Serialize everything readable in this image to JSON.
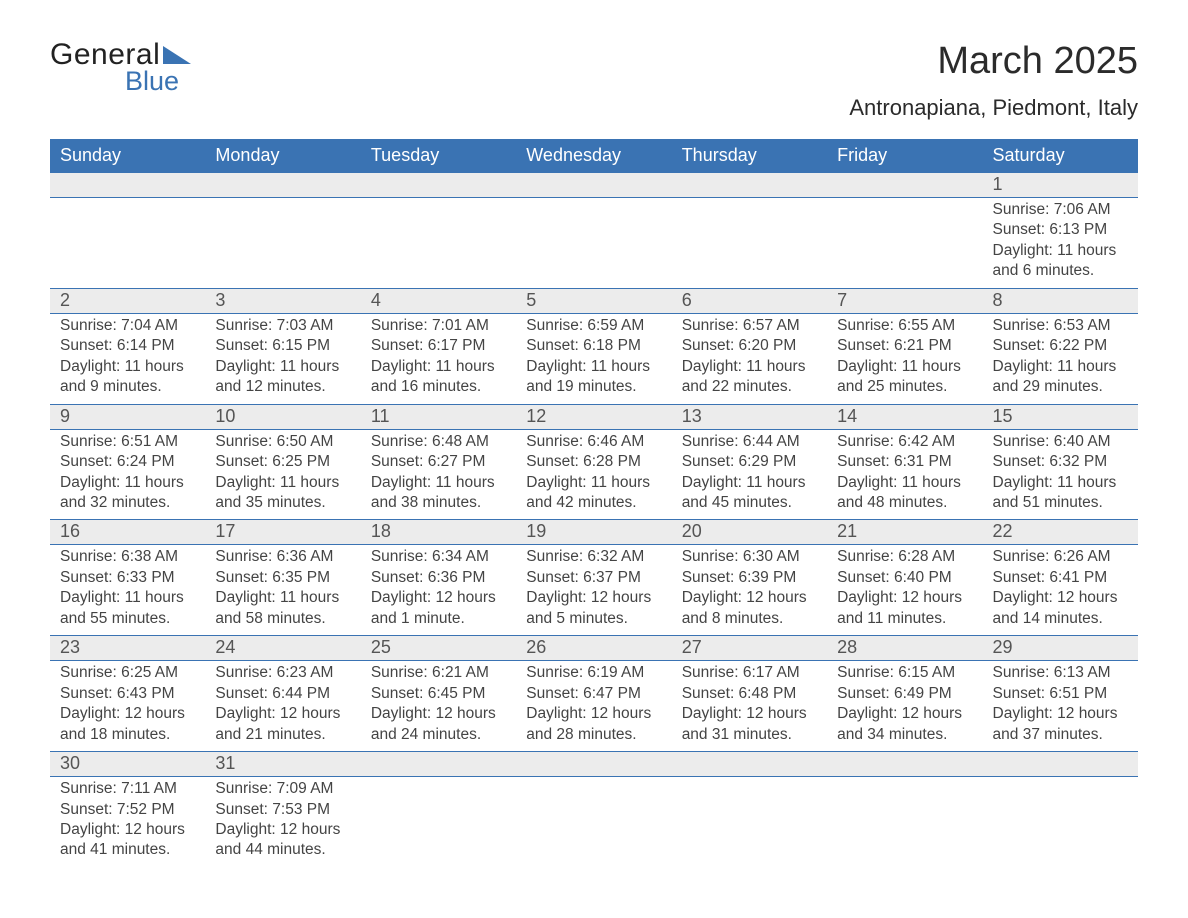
{
  "logo": {
    "line1": "General",
    "line2": "Blue"
  },
  "title": "March 2025",
  "location": "Antronapiana, Piedmont, Italy",
  "colors": {
    "brand": "#3a73b3",
    "header_bg": "#3a73b3",
    "header_text": "#ffffff",
    "daynum_bg": "#ececec",
    "text": "#3a3a3a",
    "row_divider": "#3a73b3",
    "background": "#ffffff"
  },
  "fonts": {
    "title_size": 38,
    "location_size": 22,
    "dayheader_size": 18,
    "daynum_size": 18,
    "detail_size": 15.5
  },
  "day_headers": [
    "Sunday",
    "Monday",
    "Tuesday",
    "Wednesday",
    "Thursday",
    "Friday",
    "Saturday"
  ],
  "weeks": [
    [
      null,
      null,
      null,
      null,
      null,
      null,
      {
        "day": "1",
        "sunrise": "7:06 AM",
        "sunset": "6:13 PM",
        "daylight": "11 hours and 6 minutes."
      }
    ],
    [
      {
        "day": "2",
        "sunrise": "7:04 AM",
        "sunset": "6:14 PM",
        "daylight": "11 hours and 9 minutes."
      },
      {
        "day": "3",
        "sunrise": "7:03 AM",
        "sunset": "6:15 PM",
        "daylight": "11 hours and 12 minutes."
      },
      {
        "day": "4",
        "sunrise": "7:01 AM",
        "sunset": "6:17 PM",
        "daylight": "11 hours and 16 minutes."
      },
      {
        "day": "5",
        "sunrise": "6:59 AM",
        "sunset": "6:18 PM",
        "daylight": "11 hours and 19 minutes."
      },
      {
        "day": "6",
        "sunrise": "6:57 AM",
        "sunset": "6:20 PM",
        "daylight": "11 hours and 22 minutes."
      },
      {
        "day": "7",
        "sunrise": "6:55 AM",
        "sunset": "6:21 PM",
        "daylight": "11 hours and 25 minutes."
      },
      {
        "day": "8",
        "sunrise": "6:53 AM",
        "sunset": "6:22 PM",
        "daylight": "11 hours and 29 minutes."
      }
    ],
    [
      {
        "day": "9",
        "sunrise": "6:51 AM",
        "sunset": "6:24 PM",
        "daylight": "11 hours and 32 minutes."
      },
      {
        "day": "10",
        "sunrise": "6:50 AM",
        "sunset": "6:25 PM",
        "daylight": "11 hours and 35 minutes."
      },
      {
        "day": "11",
        "sunrise": "6:48 AM",
        "sunset": "6:27 PM",
        "daylight": "11 hours and 38 minutes."
      },
      {
        "day": "12",
        "sunrise": "6:46 AM",
        "sunset": "6:28 PM",
        "daylight": "11 hours and 42 minutes."
      },
      {
        "day": "13",
        "sunrise": "6:44 AM",
        "sunset": "6:29 PM",
        "daylight": "11 hours and 45 minutes."
      },
      {
        "day": "14",
        "sunrise": "6:42 AM",
        "sunset": "6:31 PM",
        "daylight": "11 hours and 48 minutes."
      },
      {
        "day": "15",
        "sunrise": "6:40 AM",
        "sunset": "6:32 PM",
        "daylight": "11 hours and 51 minutes."
      }
    ],
    [
      {
        "day": "16",
        "sunrise": "6:38 AM",
        "sunset": "6:33 PM",
        "daylight": "11 hours and 55 minutes."
      },
      {
        "day": "17",
        "sunrise": "6:36 AM",
        "sunset": "6:35 PM",
        "daylight": "11 hours and 58 minutes."
      },
      {
        "day": "18",
        "sunrise": "6:34 AM",
        "sunset": "6:36 PM",
        "daylight": "12 hours and 1 minute."
      },
      {
        "day": "19",
        "sunrise": "6:32 AM",
        "sunset": "6:37 PM",
        "daylight": "12 hours and 5 minutes."
      },
      {
        "day": "20",
        "sunrise": "6:30 AM",
        "sunset": "6:39 PM",
        "daylight": "12 hours and 8 minutes."
      },
      {
        "day": "21",
        "sunrise": "6:28 AM",
        "sunset": "6:40 PM",
        "daylight": "12 hours and 11 minutes."
      },
      {
        "day": "22",
        "sunrise": "6:26 AM",
        "sunset": "6:41 PM",
        "daylight": "12 hours and 14 minutes."
      }
    ],
    [
      {
        "day": "23",
        "sunrise": "6:25 AM",
        "sunset": "6:43 PM",
        "daylight": "12 hours and 18 minutes."
      },
      {
        "day": "24",
        "sunrise": "6:23 AM",
        "sunset": "6:44 PM",
        "daylight": "12 hours and 21 minutes."
      },
      {
        "day": "25",
        "sunrise": "6:21 AM",
        "sunset": "6:45 PM",
        "daylight": "12 hours and 24 minutes."
      },
      {
        "day": "26",
        "sunrise": "6:19 AM",
        "sunset": "6:47 PM",
        "daylight": "12 hours and 28 minutes."
      },
      {
        "day": "27",
        "sunrise": "6:17 AM",
        "sunset": "6:48 PM",
        "daylight": "12 hours and 31 minutes."
      },
      {
        "day": "28",
        "sunrise": "6:15 AM",
        "sunset": "6:49 PM",
        "daylight": "12 hours and 34 minutes."
      },
      {
        "day": "29",
        "sunrise": "6:13 AM",
        "sunset": "6:51 PM",
        "daylight": "12 hours and 37 minutes."
      }
    ],
    [
      {
        "day": "30",
        "sunrise": "7:11 AM",
        "sunset": "7:52 PM",
        "daylight": "12 hours and 41 minutes."
      },
      {
        "day": "31",
        "sunrise": "7:09 AM",
        "sunset": "7:53 PM",
        "daylight": "12 hours and 44 minutes."
      },
      null,
      null,
      null,
      null,
      null
    ]
  ],
  "labels": {
    "sunrise_prefix": "Sunrise: ",
    "sunset_prefix": "Sunset: ",
    "daylight_prefix": "Daylight: "
  }
}
